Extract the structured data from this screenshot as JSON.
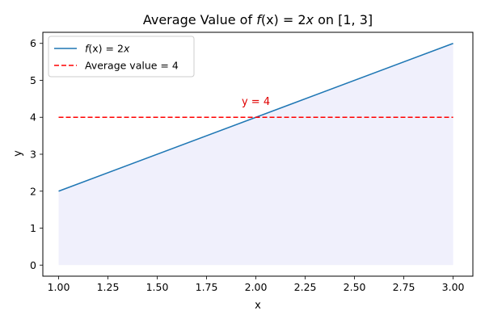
{
  "chart_data": {
    "type": "line",
    "title": "Average Value of f(x) = 2x on [1, 3]",
    "title_parts": {
      "prefix": "Average Value of ",
      "func": "f",
      "arg": "(x) = 2",
      "var": "x",
      "suffix": " on [1, 3]"
    },
    "xlabel": "x",
    "ylabel": "y",
    "xlim": [
      0.92,
      3.1
    ],
    "ylim": [
      -0.3,
      6.3
    ],
    "xticks": [
      1.0,
      1.25,
      1.5,
      1.75,
      2.0,
      2.25,
      2.5,
      2.75,
      3.0
    ],
    "xtick_labels": [
      "1.00",
      "1.25",
      "1.50",
      "1.75",
      "2.00",
      "2.25",
      "2.50",
      "2.75",
      "3.00"
    ],
    "yticks": [
      0,
      1,
      2,
      3,
      4,
      5,
      6
    ],
    "ytick_labels": [
      "0",
      "1",
      "2",
      "3",
      "4",
      "5",
      "6"
    ],
    "series": [
      {
        "name": "f(x) = 2x",
        "legend_parts": {
          "func": "f",
          "arg": "(x) = 2",
          "var": "x"
        },
        "x": [
          1.0,
          3.0
        ],
        "y": [
          2,
          6
        ],
        "color": "#1f77b4",
        "style": "solid"
      },
      {
        "name": "Average value = 4",
        "x": [
          1.0,
          3.0
        ],
        "y": [
          4,
          4
        ],
        "color": "#ff0000",
        "style": "dashed"
      }
    ],
    "fill": {
      "x": [
        1.0,
        3.0
      ],
      "y_top": [
        2,
        6
      ],
      "y_bottom": 0,
      "color": "#e6e6fa"
    },
    "annotation": {
      "text": "y = 4",
      "x": 2.0,
      "y": 4.2,
      "color": "#e00000"
    },
    "legend_position": "upper-left",
    "grid": false
  }
}
